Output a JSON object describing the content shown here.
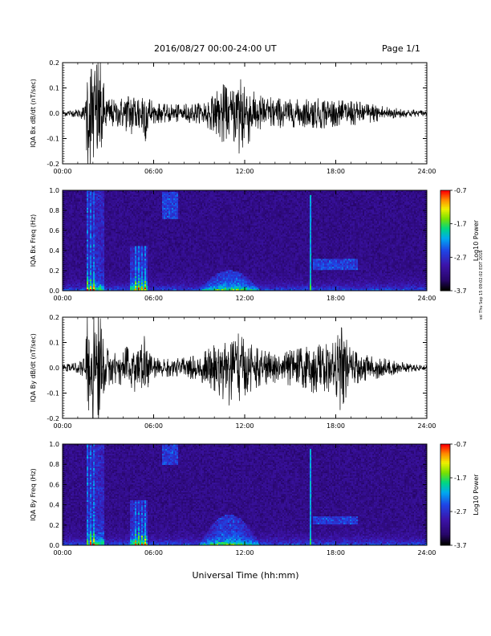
{
  "header": {
    "title": "2016/08/27  00:00-24:00 UT",
    "page": "Page 1/1"
  },
  "footer": {
    "xaxis_title": "Universal Time (hh:mm)"
  },
  "side_stamp": "ssi Thu Sep 15 09:02:02 EDT 2016",
  "colors": {
    "waveform": "#000000",
    "spectro_background": "#28066a",
    "colorbar": [
      "#000000",
      "#3a0a8a",
      "#1f3fe0",
      "#00a6f0",
      "#00d878",
      "#7ee000",
      "#f0f000",
      "#ff8a00",
      "#ff0000"
    ]
  },
  "chart_data": [
    {
      "type": "line",
      "ylabel": "IQA Bx dB/dt (nT/sec)",
      "x_ticklabels": [
        "00:00",
        "06:00",
        "12:00",
        "18:00",
        "24:00"
      ],
      "y_ticklabels": [
        "0.2",
        "0.1",
        "0.0",
        "-0.1",
        "-0.2"
      ],
      "xlim": [
        0,
        24
      ],
      "ylim": [
        -0.2,
        0.2
      ],
      "series": [
        {
          "envelope_hours": [
            0,
            1.0,
            1.5,
            1.6,
            2.5,
            2.8,
            3.0,
            3.5,
            4.0,
            4.5,
            5.0,
            5.4,
            5.7,
            6.0,
            7.0,
            8.0,
            9.0,
            9.5,
            10.0,
            10.5,
            10.8,
            11.0,
            11.5,
            11.7,
            12.0,
            12.5,
            13.0,
            14.0,
            15.0,
            16.0,
            17.0,
            17.5,
            18.0,
            19.0,
            20.0,
            21.0,
            22.0,
            23.0,
            24.0
          ],
          "envelope_amplitude": [
            0.012,
            0.015,
            0.03,
            0.21,
            0.21,
            0.08,
            0.06,
            0.05,
            0.06,
            0.09,
            0.08,
            0.12,
            0.07,
            0.04,
            0.035,
            0.035,
            0.04,
            0.06,
            0.07,
            0.12,
            0.1,
            0.08,
            0.13,
            0.21,
            0.15,
            0.09,
            0.07,
            0.06,
            0.055,
            0.055,
            0.06,
            0.06,
            0.05,
            0.05,
            0.04,
            0.03,
            0.02,
            0.015,
            0.01
          ]
        }
      ]
    },
    {
      "type": "heatmap",
      "ylabel": "IQA Bx Freq (Hz)",
      "x_ticklabels": [
        "00:00",
        "06:00",
        "12:00",
        "18:00",
        "24:00"
      ],
      "y_ticklabels": [
        "1.0",
        "0.8",
        "0.6",
        "0.4",
        "0.2",
        "0.0"
      ],
      "xlim": [
        0,
        24
      ],
      "ylim": [
        0,
        1.0
      ],
      "colorbar": {
        "label": "Log10 Power",
        "ticklabels": [
          "-0.7",
          "-1.7",
          "-2.7",
          "-3.7"
        ],
        "range": [
          -3.7,
          -0.7
        ]
      },
      "features": [
        {
          "kind": "burst",
          "t_start": 1.6,
          "t_end": 2.8,
          "f_max": 1.0
        },
        {
          "kind": "burst",
          "t_start": 4.4,
          "t_end": 5.6,
          "f_max": 0.45
        },
        {
          "kind": "band",
          "t_start": 6.6,
          "t_end": 7.6,
          "f_low": 0.72,
          "f_high": 0.98
        },
        {
          "kind": "hump",
          "t_start": 9.0,
          "t_end": 13.0,
          "f_max": 0.2
        },
        {
          "kind": "line",
          "t": 16.3,
          "f_max": 0.95
        },
        {
          "kind": "band",
          "t_start": 16.5,
          "t_end": 19.5,
          "f_low": 0.2,
          "f_high": 0.32
        }
      ]
    },
    {
      "type": "line",
      "ylabel": "IQA By dB/dt (nT/sec)",
      "x_ticklabels": [
        "00:00",
        "06:00",
        "12:00",
        "18:00",
        "24:00"
      ],
      "y_ticklabels": [
        "0.2",
        "0.1",
        "0.0",
        "-0.1",
        "-0.2"
      ],
      "xlim": [
        0,
        24
      ],
      "ylim": [
        -0.2,
        0.2
      ],
      "series": [
        {
          "envelope_hours": [
            0,
            1.0,
            1.5,
            1.6,
            2.5,
            2.8,
            3.0,
            3.5,
            4.0,
            4.5,
            5.0,
            5.4,
            5.7,
            6.0,
            7.0,
            8.0,
            9.0,
            10.0,
            10.5,
            11.0,
            11.5,
            12.0,
            12.5,
            13.0,
            14.0,
            15.0,
            16.0,
            16.5,
            17.0,
            18.0,
            18.3,
            19.0,
            20.0,
            21.0,
            22.0,
            23.0,
            24.0
          ],
          "envelope_amplitude": [
            0.012,
            0.02,
            0.04,
            0.21,
            0.21,
            0.1,
            0.07,
            0.06,
            0.07,
            0.1,
            0.09,
            0.13,
            0.06,
            0.04,
            0.035,
            0.04,
            0.05,
            0.09,
            0.12,
            0.15,
            0.14,
            0.11,
            0.09,
            0.07,
            0.06,
            0.07,
            0.08,
            0.1,
            0.09,
            0.1,
            0.17,
            0.07,
            0.05,
            0.04,
            0.025,
            0.015,
            0.01
          ]
        }
      ]
    },
    {
      "type": "heatmap",
      "ylabel": "IQA By Freq (Hz)",
      "x_ticklabels": [
        "00:00",
        "06:00",
        "12:00",
        "18:00",
        "24:00"
      ],
      "y_ticklabels": [
        "1.0",
        "0.8",
        "0.6",
        "0.4",
        "0.2",
        "0.0"
      ],
      "xlim": [
        0,
        24
      ],
      "ylim": [
        0,
        1.0
      ],
      "colorbar": {
        "label": "Log10 Power",
        "ticklabels": [
          "-0.7",
          "-1.7",
          "-2.7",
          "-3.7"
        ],
        "range": [
          -3.7,
          -0.7
        ]
      },
      "features": [
        {
          "kind": "burst",
          "t_start": 1.6,
          "t_end": 2.8,
          "f_max": 1.0
        },
        {
          "kind": "burst",
          "t_start": 4.4,
          "t_end": 5.6,
          "f_max": 0.45
        },
        {
          "kind": "band",
          "t_start": 6.6,
          "t_end": 7.6,
          "f_low": 0.8,
          "f_high": 1.0
        },
        {
          "kind": "hump",
          "t_start": 9.0,
          "t_end": 13.0,
          "f_max": 0.3
        },
        {
          "kind": "line",
          "t": 16.3,
          "f_max": 0.95
        },
        {
          "kind": "band",
          "t_start": 16.5,
          "t_end": 19.5,
          "f_low": 0.2,
          "f_high": 0.28
        }
      ]
    }
  ]
}
